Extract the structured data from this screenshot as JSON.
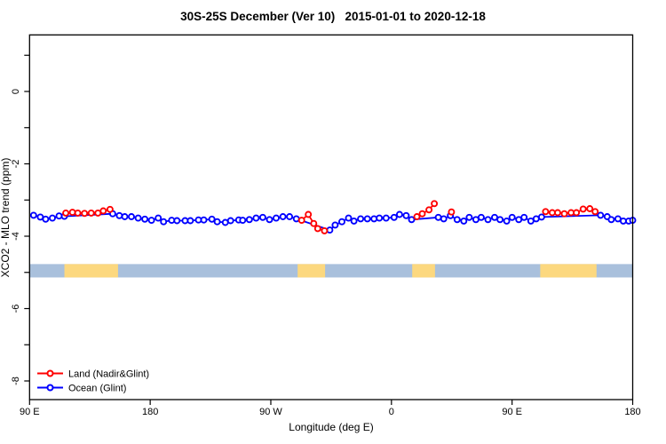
{
  "chart_data": {
    "type": "line",
    "title": "30S-25S December (Ver 10)   2015-01-01 to 2020-12-18",
    "xlabel": "Longitude (deg E)",
    "ylabel": "XCO2 - MLO trend (ppm)",
    "x_axis": {
      "range_deg": [
        90,
        540
      ],
      "ticks": [
        {
          "lon": 90,
          "label": "90 E"
        },
        {
          "lon": 180,
          "label": "180"
        },
        {
          "lon": 270,
          "label": "90 W"
        },
        {
          "lon": 360,
          "label": "0"
        },
        {
          "lon": 450,
          "label": "90 E"
        },
        {
          "lon": 540,
          "label": "180"
        }
      ]
    },
    "y_axis": {
      "range": [
        -8.5,
        1.55
      ],
      "ticks": [
        {
          "value": 1,
          "label": ""
        },
        {
          "value": 0,
          "label": "0"
        },
        {
          "value": -1,
          "label": ""
        },
        {
          "value": -2,
          "label": "-2"
        },
        {
          "value": -3,
          "label": ""
        },
        {
          "value": -4,
          "label": "-4"
        },
        {
          "value": -5,
          "label": ""
        },
        {
          "value": -6,
          "label": "-6"
        },
        {
          "value": -7,
          "label": ""
        },
        {
          "value": -8,
          "label": "-8"
        }
      ]
    },
    "surface_band": {
      "y_top": -4.77,
      "y_bottom": -5.14,
      "ocean_color": "#a9c0dc",
      "land_color": "#fcd87f",
      "land_segments_deg": [
        [
          116,
          156
        ],
        [
          290,
          310.5
        ],
        [
          375.5,
          392.5
        ],
        [
          471,
          513
        ]
      ]
    },
    "series": [
      {
        "name": "Land (Nadir&Glint)",
        "color": "#ff0000",
        "segments": [
          [
            [
              117,
              -3.36
            ],
            [
              122,
              -3.34
            ],
            [
              126,
              -3.36
            ],
            [
              131,
              -3.37
            ],
            [
              136,
              -3.36
            ],
            [
              141,
              -3.36
            ],
            [
              145,
              -3.3
            ],
            [
              150,
              -3.26
            ]
          ],
          [
            [
              293,
              -3.56
            ],
            [
              298,
              -3.4
            ],
            [
              302,
              -3.65
            ],
            [
              305,
              -3.79
            ],
            [
              310,
              -3.85
            ]
          ],
          [
            [
              379,
              -3.46
            ],
            [
              383,
              -3.38
            ],
            [
              388,
              -3.27
            ],
            [
              392,
              -3.1
            ]
          ],
          [
            [
              404.8,
              -3.33
            ]
          ],
          [
            [
              475,
              -3.32
            ],
            [
              480,
              -3.35
            ],
            [
              484,
              -3.35
            ],
            [
              489,
              -3.38
            ],
            [
              494,
              -3.35
            ],
            [
              498,
              -3.35
            ],
            [
              503,
              -3.25
            ],
            [
              508,
              -3.24
            ],
            [
              512,
              -3.32
            ]
          ]
        ]
      },
      {
        "name": "Ocean (Glint)",
        "color": "#0000ff",
        "segments": [
          [
            [
              93,
              -3.42
            ],
            [
              98,
              -3.47
            ],
            [
              102,
              -3.53
            ],
            [
              107,
              -3.5
            ],
            [
              112,
              -3.44
            ],
            [
              116,
              -3.45
            ],
            [
              152,
              -3.38
            ],
            [
              157,
              -3.43
            ],
            [
              161,
              -3.46
            ],
            [
              166,
              -3.46
            ],
            [
              171,
              -3.5
            ],
            [
              176,
              -3.53
            ],
            [
              181,
              -3.56
            ],
            [
              186,
              -3.5
            ],
            [
              190,
              -3.6
            ],
            [
              196,
              -3.56
            ],
            [
              200,
              -3.57
            ],
            [
              206,
              -3.57
            ],
            [
              210,
              -3.57
            ],
            [
              216,
              -3.55
            ],
            [
              220,
              -3.55
            ],
            [
              226,
              -3.53
            ],
            [
              230,
              -3.6
            ],
            [
              236,
              -3.62
            ],
            [
              240,
              -3.57
            ],
            [
              246,
              -3.55
            ],
            [
              249,
              -3.56
            ],
            [
              254,
              -3.54
            ],
            [
              259,
              -3.5
            ],
            [
              264,
              -3.48
            ],
            [
              269,
              -3.54
            ],
            [
              274,
              -3.5
            ],
            [
              279,
              -3.46
            ],
            [
              284,
              -3.46
            ],
            [
              289,
              -3.52
            ],
            [
              314,
              -3.83
            ],
            [
              318,
              -3.69
            ],
            [
              323,
              -3.6
            ],
            [
              328,
              -3.5
            ],
            [
              332,
              -3.58
            ],
            [
              337,
              -3.52
            ],
            [
              342,
              -3.52
            ],
            [
              347,
              -3.52
            ],
            [
              351,
              -3.5
            ],
            [
              356,
              -3.5
            ],
            [
              362,
              -3.48
            ],
            [
              366,
              -3.4
            ],
            [
              371,
              -3.43
            ],
            [
              375,
              -3.54
            ],
            [
              395,
              -3.48
            ],
            [
              399,
              -3.52
            ],
            [
              404,
              -3.43
            ],
            [
              409,
              -3.54
            ],
            [
              414,
              -3.58
            ],
            [
              418,
              -3.48
            ],
            [
              423,
              -3.54
            ],
            [
              427,
              -3.48
            ],
            [
              432,
              -3.54
            ],
            [
              437,
              -3.48
            ],
            [
              441,
              -3.54
            ],
            [
              446,
              -3.58
            ],
            [
              450,
              -3.48
            ],
            [
              455,
              -3.54
            ],
            [
              459,
              -3.48
            ],
            [
              464,
              -3.58
            ],
            [
              468,
              -3.52
            ],
            [
              472,
              -3.47
            ],
            [
              516,
              -3.42
            ],
            [
              521,
              -3.46
            ],
            [
              524,
              -3.54
            ],
            [
              529,
              -3.52
            ],
            [
              533,
              -3.58
            ],
            [
              537,
              -3.58
            ],
            [
              540,
              -3.56
            ]
          ]
        ]
      }
    ],
    "legend": {
      "position": "bottom-left",
      "items": [
        {
          "label": "Land (Nadir&Glint)",
          "color": "#ff0000"
        },
        {
          "label": "Ocean (Glint)",
          "color": "#0000ff"
        }
      ]
    }
  }
}
